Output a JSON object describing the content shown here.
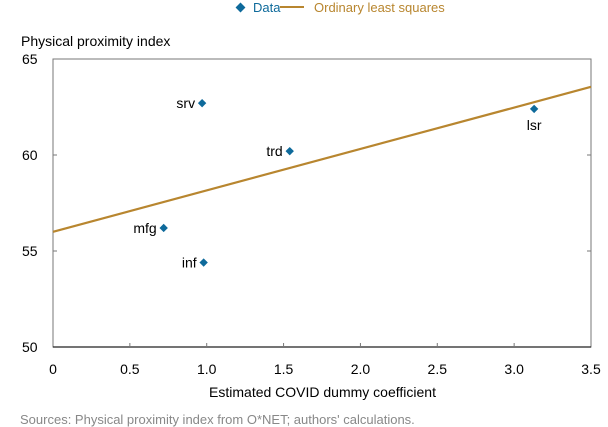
{
  "legend": {
    "data_label": "Data",
    "ols_label": "Ordinary least squares"
  },
  "colors": {
    "data": "#0e6a9b",
    "ols": "#b8862f",
    "axis": "#777777"
  },
  "source_note": "Sources: Physical proximity index from O*NET; authors' calculations.",
  "chart_data": {
    "type": "scatter",
    "title": "",
    "xlabel": "Estimated COVID dummy coefficient",
    "ylabel": "Physical proximity index",
    "xlim": [
      0,
      3.5
    ],
    "ylim": [
      50,
      65
    ],
    "xticks": [
      0,
      0.5,
      1.0,
      1.5,
      2.0,
      2.5,
      3.0,
      3.5
    ],
    "xtick_labels": [
      "0",
      "0.5",
      "1.0",
      "1.5",
      "2.0",
      "2.5",
      "3.0",
      "3.5"
    ],
    "yticks": [
      50,
      55,
      60,
      65
    ],
    "ytick_labels": [
      "50",
      "55",
      "60",
      "65"
    ],
    "grid": false,
    "legend_position": "top-center",
    "series": [
      {
        "name": "Data",
        "kind": "scatter",
        "points": [
          {
            "label": "srv",
            "x": 0.97,
            "y": 62.7,
            "label_side": "left"
          },
          {
            "label": "trd",
            "x": 1.54,
            "y": 60.2,
            "label_side": "left"
          },
          {
            "label": "lsr",
            "x": 3.13,
            "y": 62.4,
            "label_side": "below"
          },
          {
            "label": "mfg",
            "x": 0.72,
            "y": 56.2,
            "label_side": "left"
          },
          {
            "label": "inf",
            "x": 0.98,
            "y": 54.4,
            "label_side": "left"
          }
        ]
      },
      {
        "name": "Ordinary least squares",
        "kind": "line",
        "x": [
          0,
          3.5
        ],
        "y": [
          56.0,
          63.55
        ]
      }
    ]
  }
}
